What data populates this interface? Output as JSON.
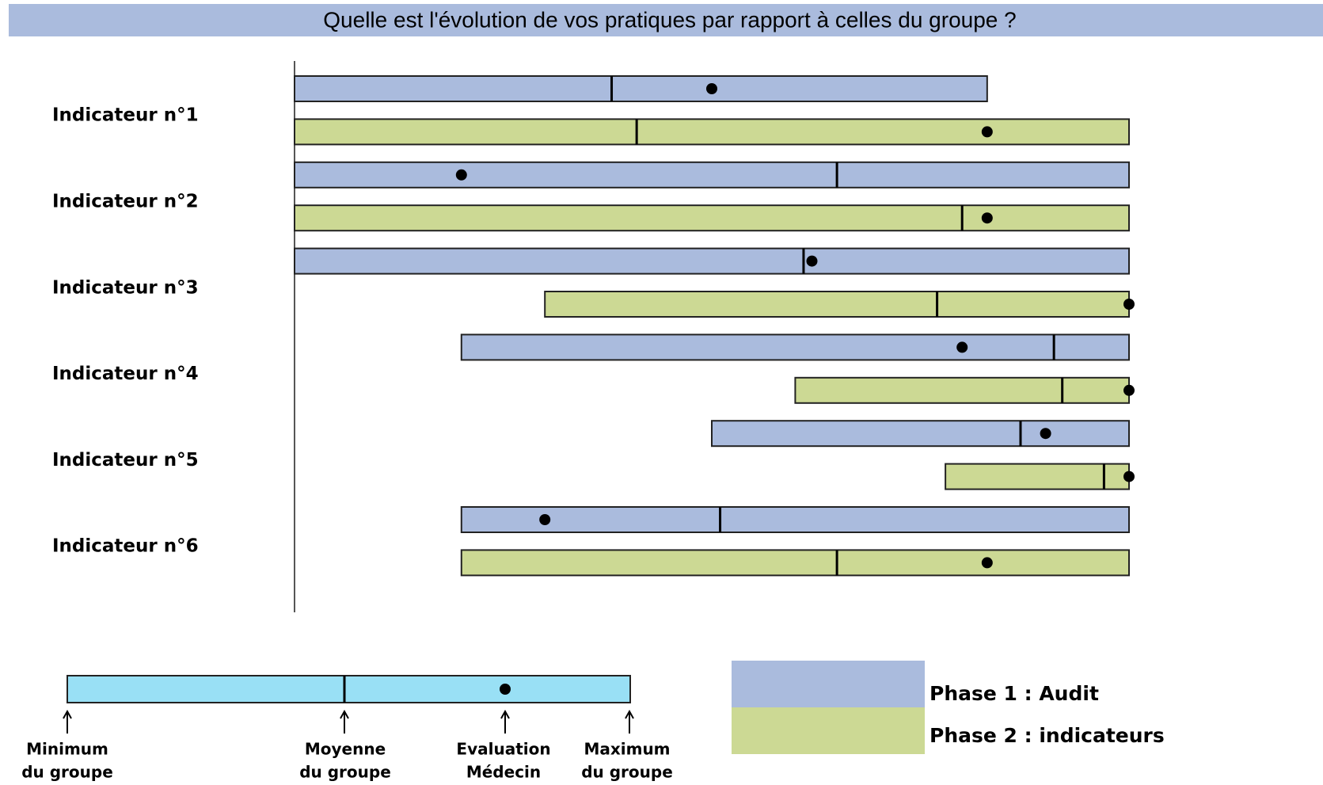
{
  "chart_data": {
    "type": "range_bar",
    "title": "Quelle est l'évolution de vos pratiques par rapport à celles du groupe ?",
    "categories": [
      "Indicateur n°1",
      "Indicateur n°2",
      "Indicateur n°3",
      "Indicateur n°4",
      "Indicateur n°5",
      "Indicateur n°6"
    ],
    "xlim": [
      0,
      100
    ],
    "series": [
      {
        "name": "Phase 1 : Audit",
        "color": "#aabbdd",
        "min": [
          0,
          0,
          0,
          20,
          50,
          20
        ],
        "mean": [
          38,
          65,
          61,
          91,
          87,
          51
        ],
        "eval": [
          50,
          20,
          62,
          80,
          90,
          30
        ],
        "max": [
          83,
          100,
          100,
          100,
          100,
          100
        ]
      },
      {
        "name": "Phase 2 : indicateurs",
        "color": "#ccd994",
        "min": [
          0,
          0,
          30,
          60,
          78,
          20
        ],
        "mean": [
          41,
          80,
          77,
          92,
          97,
          65
        ],
        "eval": [
          83,
          83,
          100,
          100,
          100,
          83
        ],
        "max": [
          100,
          100,
          100,
          100,
          100,
          100
        ]
      }
    ],
    "key": {
      "color": "#99e0f5",
      "labels": [
        [
          "Minimum",
          "du groupe"
        ],
        [
          "Moyenne",
          "du groupe"
        ],
        [
          "Evaluation",
          "Médecin"
        ],
        [
          "Maximum",
          "du groupe"
        ]
      ]
    }
  }
}
